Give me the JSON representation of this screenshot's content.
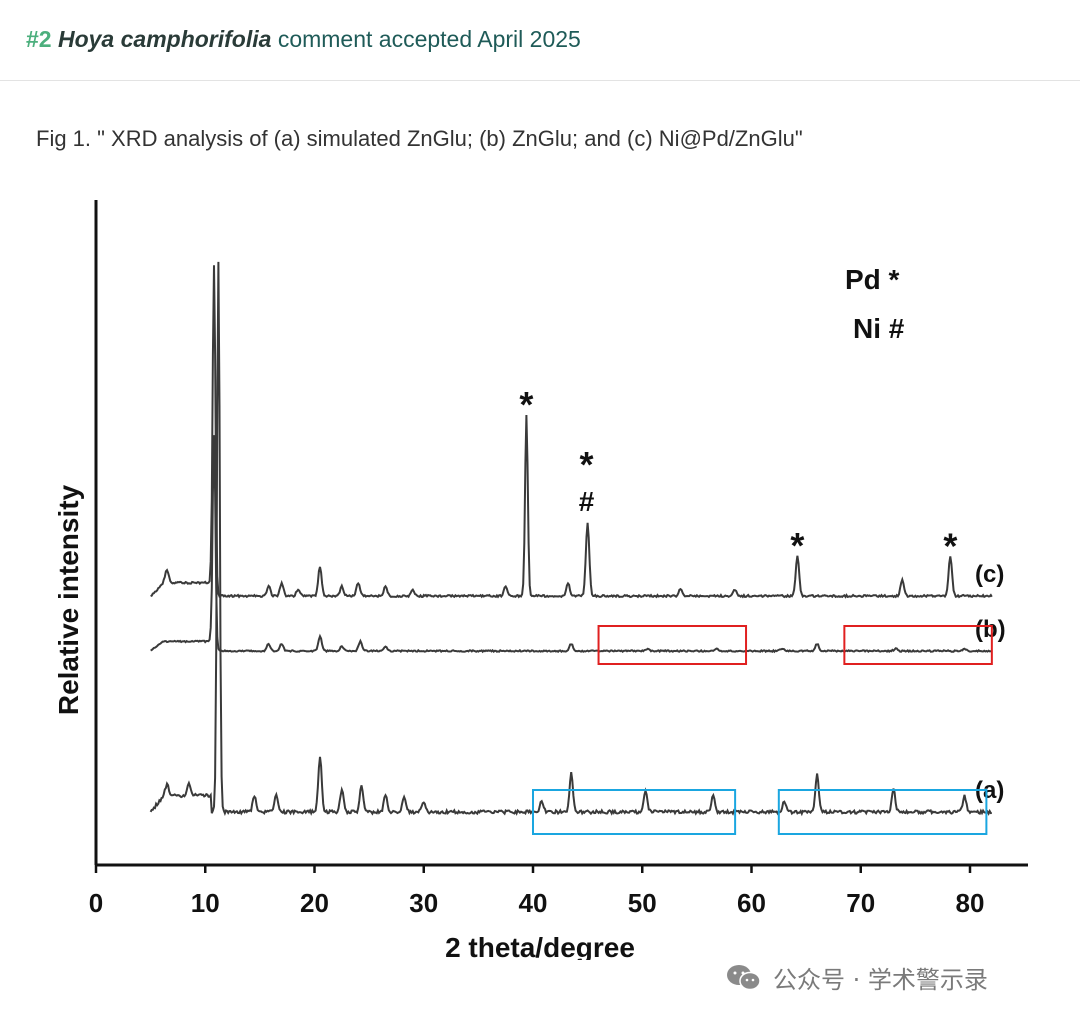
{
  "header": {
    "number": "#2",
    "species": "Hoya camphorifolia",
    "text": "comment accepted April 2025"
  },
  "caption": "Fig 1. \" XRD analysis of (a) simulated ZnGlu; (b) ZnGlu; and (c) Ni@Pd/ZnGlu\"",
  "colors": {
    "line": "#3a3a3a",
    "red_box": "#e02020",
    "blue_box": "#1aa6e0",
    "header_text": "#1f5b58",
    "header_num": "#4caf7d"
  },
  "chart_data": {
    "type": "line",
    "xlabel": "2 theta/degree",
    "ylabel": "Relative intensity",
    "xlim": [
      0,
      85
    ],
    "x_ticks": [
      "0",
      "10",
      "20",
      "30",
      "40",
      "50",
      "60",
      "70",
      "80"
    ],
    "legend": {
      "pd": "Pd *",
      "ni": "Ni #"
    },
    "series": [
      {
        "name": "(c)",
        "baseline": 0.58,
        "start": [
          5,
          0.62
        ],
        "peaks": [
          [
            6.5,
            0.04
          ],
          [
            10.8,
            1.0
          ],
          [
            15.8,
            0.03
          ],
          [
            17.0,
            0.04
          ],
          [
            18.5,
            0.02
          ],
          [
            20.5,
            0.09
          ],
          [
            22.5,
            0.03
          ],
          [
            24.0,
            0.04
          ],
          [
            26.5,
            0.03
          ],
          [
            29.0,
            0.02
          ],
          [
            37.5,
            0.03
          ],
          [
            39.4,
            0.55
          ],
          [
            43.2,
            0.04
          ],
          [
            45.0,
            0.22
          ],
          [
            53.5,
            0.02
          ],
          [
            58.5,
            0.02
          ],
          [
            64.2,
            0.12
          ],
          [
            73.8,
            0.05
          ],
          [
            78.2,
            0.12
          ]
        ],
        "markers": [
          {
            "x": 39.4,
            "symbol": "*"
          },
          {
            "x": 44.9,
            "symbol": "*"
          },
          {
            "x": 44.9,
            "symbol": "#"
          },
          {
            "x": 64.2,
            "symbol": "*"
          },
          {
            "x": 78.2,
            "symbol": "*"
          }
        ]
      },
      {
        "name": "(b)",
        "baseline": 0.48,
        "start": [
          5,
          0.52
        ],
        "peaks": [
          [
            10.8,
            0.9
          ],
          [
            15.8,
            0.03
          ],
          [
            17.0,
            0.03
          ],
          [
            20.5,
            0.06
          ],
          [
            22.5,
            0.02
          ],
          [
            24.2,
            0.04
          ],
          [
            26.5,
            0.02
          ],
          [
            43.5,
            0.03
          ],
          [
            50.5,
            0.01
          ],
          [
            56.8,
            0.01
          ],
          [
            62.8,
            0.01
          ],
          [
            66.0,
            0.03
          ],
          [
            73.2,
            0.01
          ],
          [
            79.5,
            0.01
          ]
        ]
      },
      {
        "name": "(a)",
        "baseline": 0.05,
        "start": [
          5,
          0.08
        ],
        "peaks": [
          [
            6.5,
            0.02
          ],
          [
            8.5,
            0.02
          ],
          [
            11.2,
            1.0
          ],
          [
            14.5,
            0.03
          ],
          [
            16.5,
            0.03
          ],
          [
            20.5,
            0.1
          ],
          [
            22.5,
            0.04
          ],
          [
            24.3,
            0.05
          ],
          [
            26.5,
            0.03
          ],
          [
            28.2,
            0.03
          ],
          [
            30.0,
            0.02
          ],
          [
            40.8,
            0.02
          ],
          [
            43.5,
            0.07
          ],
          [
            50.3,
            0.04
          ],
          [
            56.5,
            0.03
          ],
          [
            63.0,
            0.02
          ],
          [
            66.0,
            0.07
          ],
          [
            73.0,
            0.04
          ],
          [
            79.5,
            0.03
          ]
        ]
      }
    ],
    "highlight_boxes": [
      {
        "series": "(b)",
        "color": "red",
        "x_range": [
          46,
          59.5
        ]
      },
      {
        "series": "(b)",
        "color": "red",
        "x_range": [
          68.5,
          82
        ]
      },
      {
        "series": "(a)",
        "color": "blue",
        "x_range": [
          40,
          58.5
        ]
      },
      {
        "series": "(a)",
        "color": "blue",
        "x_range": [
          62.5,
          81.5
        ]
      }
    ]
  },
  "watermark": {
    "text": "公众号 · 学术警示录",
    "icon": "wechat-icon"
  }
}
